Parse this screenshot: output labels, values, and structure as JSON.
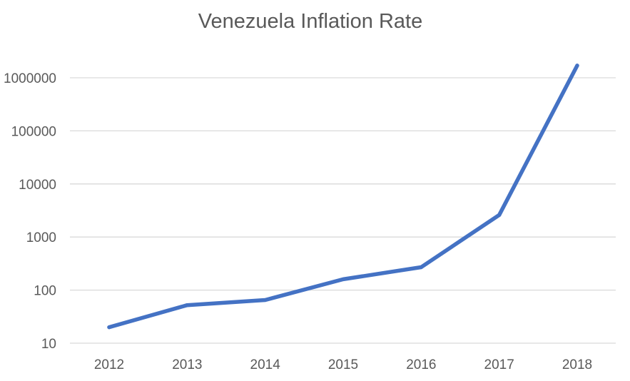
{
  "chart_data": {
    "type": "line",
    "title": "Venezuela Inflation Rate",
    "xlabel": "",
    "ylabel": "",
    "x": [
      "2012",
      "2013",
      "2014",
      "2015",
      "2016",
      "2017",
      "2018"
    ],
    "series": [
      {
        "values": [
          20,
          52,
          65,
          160,
          270,
          2600,
          1700000
        ],
        "color": "#4472c4"
      }
    ],
    "yscale": "log",
    "ylim": [
      10,
      1000000
    ],
    "yticks": [
      10,
      100,
      1000,
      10000,
      100000,
      1000000
    ],
    "ytick_labels": [
      "10",
      "100",
      "1000",
      "10000",
      "100000",
      "1000000"
    ],
    "grid": true,
    "legend": "none"
  }
}
